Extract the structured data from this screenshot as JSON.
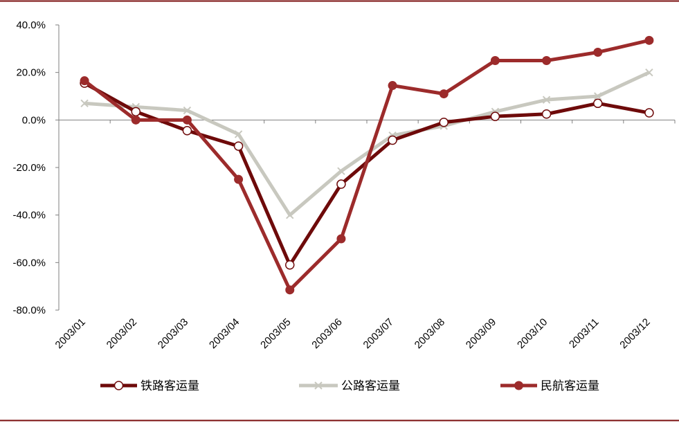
{
  "chart_data": {
    "type": "line",
    "categories": [
      "2003/01",
      "2003/02",
      "2003/03",
      "2003/04",
      "2003/05",
      "2003/06",
      "2003/07",
      "2003/08",
      "2003/09",
      "2003/10",
      "2003/11",
      "2003/12"
    ],
    "y_tick_labels": [
      "40.0%",
      "20.0%",
      "0.0%",
      "-20.0%",
      "-40.0%",
      "-60.0%",
      "-80.0%"
    ],
    "ylim": [
      -80,
      40
    ],
    "y_unit": "%",
    "grid": false,
    "legend_position": "bottom",
    "series": [
      {
        "name": "铁路客运量",
        "color": "#6e0a0a",
        "marker": "hollow-circle",
        "values": [
          15.5,
          3.5,
          -4.5,
          -11,
          -61,
          -27,
          -8.5,
          -1,
          1.5,
          2.5,
          7,
          3
        ]
      },
      {
        "name": "公路客运量",
        "color": "#c8c8bf",
        "marker": "cross",
        "values": [
          7,
          5.5,
          4,
          -6,
          -40,
          -21.5,
          -6.5,
          -2.5,
          3.5,
          8.5,
          10,
          20
        ]
      },
      {
        "name": "民航客运量",
        "color": "#9c2b2b",
        "marker": "filled-circle",
        "values": [
          16.5,
          0,
          0,
          -25,
          -71.5,
          -50,
          14.5,
          11,
          25,
          25,
          28.5,
          33.5
        ]
      }
    ]
  },
  "colors": {
    "border": "#7a0e0e",
    "axis": "#7f7f7f"
  }
}
